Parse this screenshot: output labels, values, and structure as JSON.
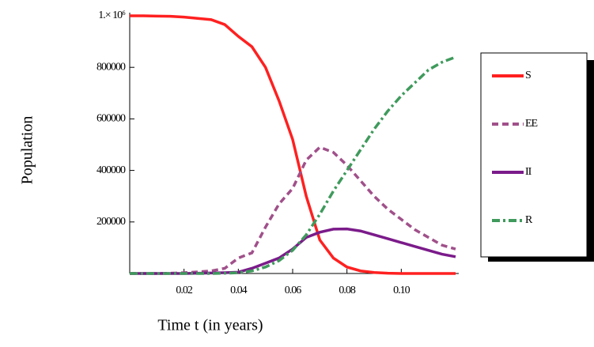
{
  "chart_data": {
    "type": "line",
    "xlabel": "Time t (in years)",
    "ylabel": "Population",
    "x": [
      0,
      0.005,
      0.01,
      0.015,
      0.02,
      0.025,
      0.03,
      0.035,
      0.04,
      0.045,
      0.05,
      0.055,
      0.06,
      0.065,
      0.07,
      0.075,
      0.08,
      0.085,
      0.09,
      0.095,
      0.1,
      0.105,
      0.11,
      0.115,
      0.12
    ],
    "series": [
      {
        "name": "S",
        "color": "#ff2020",
        "dash": "solid",
        "values": [
          1000000,
          1000000,
          999000,
          998000,
          995000,
          990000,
          985000,
          966000,
          920000,
          880000,
          800000,
          670000,
          520000,
          300000,
          130000,
          60000,
          25000,
          10000,
          4000,
          1000,
          0,
          0,
          0,
          0,
          0
        ]
      },
      {
        "name": "EE",
        "color": "#a0508a",
        "dash": "dashed",
        "values": [
          0,
          0,
          0,
          1000,
          3000,
          6000,
          10000,
          20000,
          60000,
          80000,
          180000,
          270000,
          330000,
          440000,
          490000,
          470000,
          420000,
          360000,
          300000,
          250000,
          210000,
          170000,
          140000,
          110000,
          95000
        ]
      },
      {
        "name": "II",
        "color": "#7b1b8a",
        "dash": "solid",
        "values": [
          0,
          0,
          0,
          0,
          0,
          1000,
          2000,
          3000,
          5000,
          20000,
          40000,
          60000,
          95000,
          140000,
          160000,
          172000,
          173000,
          165000,
          150000,
          135000,
          120000,
          105000,
          90000,
          75000,
          65000
        ]
      },
      {
        "name": "R",
        "color": "#3f9a5c",
        "dash": "dashdot",
        "values": [
          0,
          0,
          0,
          0,
          0,
          0,
          0,
          1000,
          3000,
          10000,
          25000,
          50000,
          90000,
          150000,
          230000,
          320000,
          400000,
          480000,
          560000,
          630000,
          690000,
          740000,
          790000,
          820000,
          840000
        ]
      }
    ],
    "xlim": [
      0,
      0.12
    ],
    "ylim": [
      0,
      1000000
    ],
    "xticks": [
      0.02,
      0.04,
      0.06,
      {
        "value": 0.08,
        "label": "0.08"
      },
      {
        "value": 0.1,
        "label": "0.10"
      }
    ],
    "yticks": [
      200000,
      400000,
      600000,
      800000,
      {
        "value": 1000000,
        "label": "1.× 10⁶"
      }
    ]
  }
}
